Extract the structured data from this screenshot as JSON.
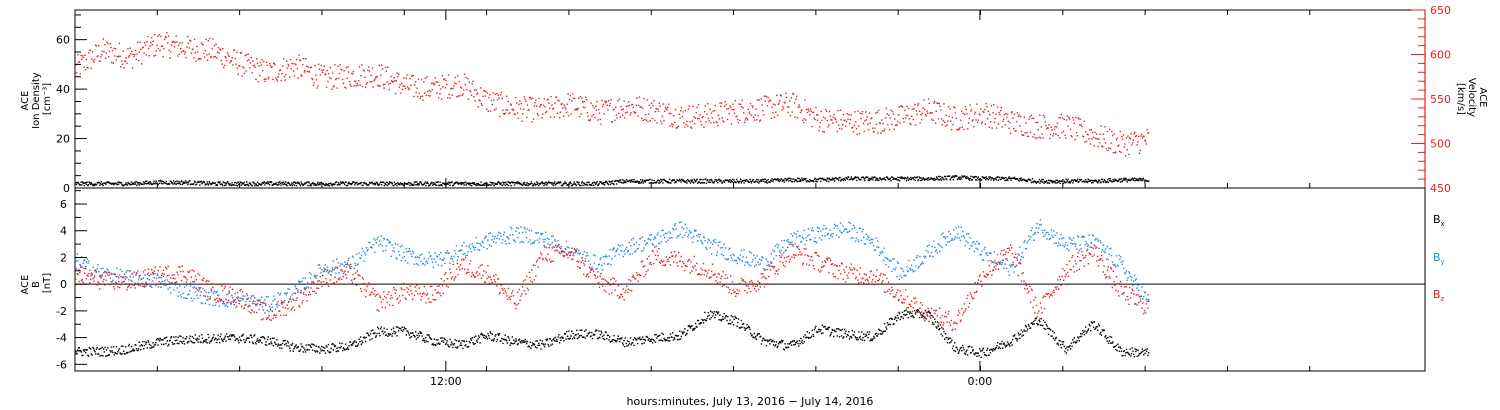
{
  "colors": {
    "black": "#000000",
    "red": "#e8201e",
    "blue": "#1e88e5"
  },
  "chart_data": [
    {
      "type": "scatter",
      "panel": "top",
      "left_axis": {
        "label_lines": [
          "ACE",
          "Ion Density",
          "[cm⁻³]"
        ],
        "ylim": [
          0,
          72
        ],
        "ticks": [
          0,
          20,
          40,
          60
        ]
      },
      "right_axis": {
        "label_lines": [
          "ACE",
          "Velocity",
          "[km/s]"
        ],
        "ylim": [
          450,
          650
        ],
        "ticks": [
          450,
          500,
          550,
          600,
          650
        ],
        "color": "#e8201e"
      },
      "series": [
        {
          "axis": "right",
          "color": "#e8201e",
          "x": [
            0,
            1,
            2,
            3,
            4,
            5,
            6,
            7,
            8,
            9,
            10,
            11,
            12,
            13,
            14,
            15,
            16,
            17,
            18,
            19,
            20,
            21,
            22,
            23,
            24,
            25,
            26,
            27,
            28,
            29,
            30,
            31,
            32,
            33,
            34,
            35,
            36,
            37,
            38,
            39
          ],
          "values": [
            585,
            605,
            598,
            613,
            608,
            605,
            590,
            580,
            588,
            574,
            577,
            578,
            565,
            562,
            568,
            548,
            540,
            538,
            545,
            535,
            543,
            538,
            531,
            532,
            537,
            540,
            545,
            528,
            525,
            525,
            530,
            538,
            528,
            535,
            525,
            520,
            520,
            510,
            500,
            505
          ]
        },
        {
          "axis": "left",
          "color": "#000000",
          "x": [
            0,
            1,
            2,
            3,
            4,
            5,
            6,
            7,
            8,
            9,
            10,
            11,
            12,
            13,
            14,
            15,
            16,
            17,
            18,
            19,
            20,
            21,
            22,
            23,
            24,
            25,
            26,
            27,
            28,
            29,
            30,
            31,
            32,
            33,
            34,
            35,
            36,
            37,
            38,
            39
          ],
          "values": [
            2,
            2,
            2,
            2.5,
            2.5,
            2,
            2,
            2,
            2,
            2,
            2,
            2,
            2,
            2,
            2,
            2,
            2,
            2,
            2,
            2,
            3,
            3,
            3,
            3,
            3,
            3,
            3.5,
            3.5,
            4,
            4,
            4,
            4,
            4.5,
            4,
            4,
            3,
            3,
            3,
            3.5,
            3.5
          ]
        }
      ]
    },
    {
      "type": "scatter",
      "panel": "bottom",
      "left_axis": {
        "label_lines": [
          "ACE",
          "B",
          "[nT]"
        ],
        "ylim": [
          -6.5,
          7.2
        ],
        "ticks": [
          -6,
          -4,
          -2,
          0,
          2,
          4,
          6
        ]
      },
      "legend": [
        {
          "label": "B",
          "sub": "x",
          "color": "#000000"
        },
        {
          "label": "B",
          "sub": "y",
          "color": "#1e88e5"
        },
        {
          "label": "B",
          "sub": "z",
          "color": "#e8201e"
        }
      ],
      "series": [
        {
          "name": "Bx",
          "color": "#000000",
          "x": [
            0,
            1,
            2,
            3,
            4,
            5,
            6,
            7,
            8,
            9,
            10,
            11,
            12,
            13,
            14,
            15,
            16,
            17,
            18,
            19,
            20,
            21,
            22,
            23,
            24,
            25,
            26,
            27,
            28,
            29,
            30,
            31,
            32,
            33,
            34,
            35,
            36,
            37,
            38,
            39
          ],
          "values": [
            -5,
            -5,
            -4.8,
            -4.3,
            -4.1,
            -4,
            -4,
            -4.2,
            -4.7,
            -4.8,
            -4.6,
            -3.5,
            -3.5,
            -4.2,
            -4.5,
            -3.8,
            -4.3,
            -4.5,
            -3.7,
            -3.7,
            -4.3,
            -4,
            -3.8,
            -2.2,
            -2.7,
            -4.2,
            -4.6,
            -3.3,
            -3.7,
            -3.9,
            -2.2,
            -2.2,
            -4.8,
            -5.1,
            -4.2,
            -2.6,
            -4.8,
            -2.9,
            -5,
            -5.1
          ]
        },
        {
          "name": "By",
          "color": "#1e88e5",
          "x": [
            0,
            1,
            2,
            3,
            4,
            5,
            6,
            7,
            8,
            9,
            10,
            11,
            12,
            13,
            14,
            15,
            16,
            17,
            18,
            19,
            20,
            21,
            22,
            23,
            24,
            25,
            26,
            27,
            28,
            29,
            30,
            31,
            32,
            33,
            34,
            35,
            36,
            37,
            38,
            39
          ],
          "values": [
            1.8,
            0.8,
            0.5,
            0.3,
            -0.5,
            -1,
            -1.2,
            -1.5,
            -0.5,
            1.2,
            1.5,
            3.2,
            2.2,
            1.8,
            2.5,
            3.3,
            3.8,
            3.5,
            2.5,
            1.5,
            2.8,
            3.3,
            4.2,
            3,
            2.2,
            1.6,
            3.3,
            3.8,
            4.2,
            3.2,
            0.8,
            2.4,
            4.1,
            2.3,
            1.2,
            4.5,
            3,
            3.2,
            1.5,
            -1.3
          ]
        },
        {
          "name": "Bz",
          "color": "#e8201e",
          "x": [
            0,
            1,
            2,
            3,
            4,
            5,
            6,
            7,
            8,
            9,
            10,
            11,
            12,
            13,
            14,
            15,
            16,
            17,
            18,
            19,
            20,
            21,
            22,
            23,
            24,
            25,
            26,
            27,
            28,
            29,
            30,
            31,
            32,
            33,
            34,
            35,
            36,
            37,
            38,
            39
          ],
          "values": [
            0.8,
            0.3,
            0.2,
            0.7,
            0.9,
            -0.6,
            -0.9,
            -2.3,
            -1.2,
            0.5,
            0.9,
            -1.3,
            -0.5,
            -0.8,
            1.5,
            0.8,
            -1.4,
            2.3,
            2.4,
            0.2,
            -0.5,
            2.2,
            1.8,
            1.2,
            -0.3,
            0.4,
            2.5,
            1.7,
            0.9,
            0.7,
            -0.8,
            -2.2,
            -2.8,
            0.8,
            2.5,
            -2.1,
            1.2,
            2.5,
            -0.5,
            -1.7
          ]
        }
      ],
      "zero_line": true
    }
  ],
  "x_axis": {
    "label": "hours:minutes, July 13, 2016 − July 14, 2016",
    "tick_labels": [
      {
        "label": "12:00",
        "pos": 0.2747
      },
      {
        "label": "0:00",
        "pos": 0.6703
      }
    ]
  }
}
